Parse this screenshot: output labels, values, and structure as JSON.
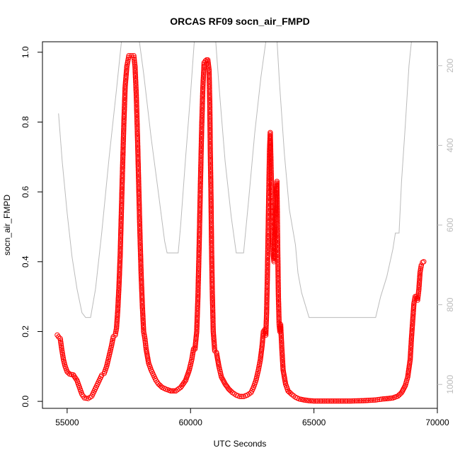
{
  "chart_data": {
    "type": "scatter",
    "title": "ORCAS RF09 socn_air_FMPD",
    "xlabel": "UTC Seconds",
    "ylabel": "socn_air_FMPD",
    "xlim": [
      54000,
      70000
    ],
    "ylim": [
      -0.02,
      1.03
    ],
    "x_ticks": [
      55000,
      60000,
      65000,
      70000
    ],
    "y_ticks": [
      0.0,
      0.2,
      0.4,
      0.6,
      0.8,
      1.0
    ],
    "y_tick_labels": [
      "0.0",
      "0.2",
      "0.4",
      "0.6",
      "0.8",
      "1.0"
    ],
    "y2_ticks": [
      200,
      400,
      600,
      800,
      1000
    ],
    "y2lim": [
      1060,
      140
    ],
    "grid": false,
    "series": [
      {
        "color": "#ff0000",
        "marker": "open-circle",
        "line": "dashed",
        "points": [
          [
            54600,
            0.19
          ],
          [
            54650,
            0.185
          ],
          [
            54720,
            0.18
          ],
          [
            54780,
            0.15
          ],
          [
            54850,
            0.12
          ],
          [
            54920,
            0.1
          ],
          [
            55000,
            0.085
          ],
          [
            55100,
            0.078
          ],
          [
            55250,
            0.076
          ],
          [
            55400,
            0.06
          ],
          [
            55500,
            0.04
          ],
          [
            55600,
            0.02
          ],
          [
            55700,
            0.01
          ],
          [
            55850,
            0.008
          ],
          [
            56000,
            0.015
          ],
          [
            56100,
            0.03
          ],
          [
            56200,
            0.045
          ],
          [
            56300,
            0.06
          ],
          [
            56400,
            0.075
          ],
          [
            56500,
            0.08
          ],
          [
            56600,
            0.1
          ],
          [
            56700,
            0.13
          ],
          [
            56800,
            0.16
          ],
          [
            56870,
            0.185
          ],
          [
            56950,
            0.19
          ],
          [
            57000,
            0.21
          ],
          [
            57050,
            0.26
          ],
          [
            57100,
            0.33
          ],
          [
            57150,
            0.42
          ],
          [
            57200,
            0.55
          ],
          [
            57250,
            0.68
          ],
          [
            57300,
            0.8
          ],
          [
            57350,
            0.9
          ],
          [
            57420,
            0.96
          ],
          [
            57500,
            0.99
          ],
          [
            57600,
            0.99
          ],
          [
            57700,
            0.99
          ],
          [
            57750,
            0.96
          ],
          [
            57800,
            0.88
          ],
          [
            57850,
            0.76
          ],
          [
            57900,
            0.62
          ],
          [
            57950,
            0.48
          ],
          [
            58000,
            0.36
          ],
          [
            58050,
            0.27
          ],
          [
            58100,
            0.2
          ],
          [
            58150,
            0.18
          ],
          [
            58200,
            0.15
          ],
          [
            58300,
            0.11
          ],
          [
            58400,
            0.09
          ],
          [
            58500,
            0.075
          ],
          [
            58600,
            0.06
          ],
          [
            58700,
            0.05
          ],
          [
            58850,
            0.04
          ],
          [
            59000,
            0.035
          ],
          [
            59200,
            0.03
          ],
          [
            59400,
            0.03
          ],
          [
            59600,
            0.04
          ],
          [
            59800,
            0.06
          ],
          [
            59950,
            0.09
          ],
          [
            60050,
            0.12
          ],
          [
            60120,
            0.15
          ],
          [
            60180,
            0.15
          ],
          [
            60250,
            0.2
          ],
          [
            60300,
            0.3
          ],
          [
            60350,
            0.45
          ],
          [
            60400,
            0.62
          ],
          [
            60450,
            0.78
          ],
          [
            60500,
            0.9
          ],
          [
            60550,
            0.97
          ],
          [
            60600,
            0.975
          ],
          [
            60650,
            0.978
          ],
          [
            60700,
            0.978
          ],
          [
            60750,
            0.95
          ],
          [
            60780,
            0.85
          ],
          [
            60800,
            0.72
          ],
          [
            60830,
            0.58
          ],
          [
            60850,
            0.45
          ],
          [
            60880,
            0.32
          ],
          [
            60920,
            0.2
          ],
          [
            60980,
            0.145
          ],
          [
            61050,
            0.14
          ],
          [
            61150,
            0.1
          ],
          [
            61250,
            0.07
          ],
          [
            61400,
            0.05
          ],
          [
            61550,
            0.035
          ],
          [
            61700,
            0.025
          ],
          [
            61850,
            0.018
          ],
          [
            62000,
            0.014
          ],
          [
            62150,
            0.014
          ],
          [
            62300,
            0.018
          ],
          [
            62450,
            0.025
          ],
          [
            62550,
            0.04
          ],
          [
            62650,
            0.06
          ],
          [
            62750,
            0.09
          ],
          [
            62830,
            0.12
          ],
          [
            62900,
            0.16
          ],
          [
            62950,
            0.2
          ],
          [
            63000,
            0.205
          ],
          [
            63050,
            0.19
          ],
          [
            63080,
            0.25
          ],
          [
            63110,
            0.35
          ],
          [
            63140,
            0.47
          ],
          [
            63170,
            0.6
          ],
          [
            63200,
            0.72
          ],
          [
            63230,
            0.77
          ],
          [
            63260,
            0.68
          ],
          [
            63290,
            0.58
          ],
          [
            63320,
            0.5
          ],
          [
            63350,
            0.42
          ],
          [
            63380,
            0.4
          ],
          [
            63410,
            0.45
          ],
          [
            63440,
            0.52
          ],
          [
            63470,
            0.6
          ],
          [
            63500,
            0.63
          ],
          [
            63530,
            0.45
          ],
          [
            63560,
            0.3
          ],
          [
            63590,
            0.22
          ],
          [
            63620,
            0.2
          ],
          [
            63650,
            0.22
          ],
          [
            63700,
            0.15
          ],
          [
            63750,
            0.09
          ],
          [
            63850,
            0.05
          ],
          [
            63950,
            0.03
          ],
          [
            64100,
            0.02
          ],
          [
            64250,
            0.012
          ],
          [
            64400,
            0.007
          ],
          [
            64600,
            0.004
          ],
          [
            64800,
            0.002
          ],
          [
            65000,
            0.001
          ],
          [
            65500,
            0.001
          ],
          [
            66000,
            0.001
          ],
          [
            66500,
            0.001
          ],
          [
            67000,
            0.002
          ],
          [
            67500,
            0.004
          ],
          [
            67800,
            0.007
          ],
          [
            68000,
            0.008
          ],
          [
            68200,
            0.01
          ],
          [
            68400,
            0.015
          ],
          [
            68550,
            0.025
          ],
          [
            68700,
            0.045
          ],
          [
            68800,
            0.07
          ],
          [
            68900,
            0.12
          ],
          [
            68950,
            0.18
          ],
          [
            69000,
            0.23
          ],
          [
            69050,
            0.28
          ],
          [
            69100,
            0.3
          ],
          [
            69150,
            0.3
          ],
          [
            69200,
            0.29
          ],
          [
            69250,
            0.32
          ],
          [
            69300,
            0.37
          ],
          [
            69350,
            0.39
          ],
          [
            69400,
            0.398
          ],
          [
            69450,
            0.4
          ]
        ]
      },
      {
        "color": "#bbbbbb",
        "axis": "right",
        "line": "solid",
        "points": [
          [
            54650,
            320
          ],
          [
            54800,
            440
          ],
          [
            55000,
            570
          ],
          [
            55200,
            680
          ],
          [
            55400,
            760
          ],
          [
            55600,
            820
          ],
          [
            55750,
            832
          ],
          [
            55950,
            832
          ],
          [
            56150,
            760
          ],
          [
            56400,
            620
          ],
          [
            56700,
            430
          ],
          [
            57000,
            260
          ],
          [
            57200,
            140
          ],
          [
            57400,
            80
          ],
          [
            57800,
            80
          ],
          [
            58100,
            220
          ],
          [
            58400,
            380
          ],
          [
            58700,
            520
          ],
          [
            58950,
            640
          ],
          [
            59050,
            670
          ],
          [
            59500,
            670
          ],
          [
            59600,
            600
          ],
          [
            59800,
            430
          ],
          [
            60000,
            270
          ],
          [
            60150,
            140
          ],
          [
            60250,
            80
          ],
          [
            60950,
            80
          ],
          [
            61150,
            250
          ],
          [
            61400,
            440
          ],
          [
            61650,
            580
          ],
          [
            61850,
            670
          ],
          [
            62150,
            670
          ],
          [
            62350,
            540
          ],
          [
            62600,
            370
          ],
          [
            62850,
            230
          ],
          [
            63050,
            140
          ],
          [
            63150,
            80
          ],
          [
            63450,
            80
          ],
          [
            63600,
            240
          ],
          [
            63800,
            420
          ],
          [
            64000,
            560
          ],
          [
            64250,
            650
          ],
          [
            64350,
            720
          ],
          [
            64500,
            770
          ],
          [
            64800,
            832
          ],
          [
            65000,
            832
          ],
          [
            67500,
            832
          ],
          [
            67700,
            780
          ],
          [
            67950,
            730
          ],
          [
            68200,
            660
          ],
          [
            68300,
            620
          ],
          [
            68450,
            620
          ],
          [
            68550,
            490
          ],
          [
            68700,
            350
          ],
          [
            68850,
            200
          ],
          [
            68950,
            140
          ],
          [
            69050,
            80
          ]
        ]
      }
    ]
  }
}
